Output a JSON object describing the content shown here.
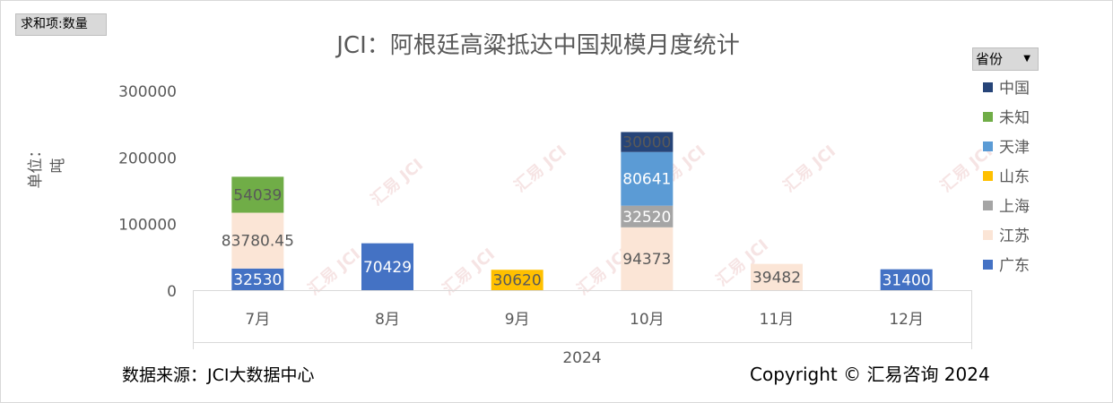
{
  "pivot_button": {
    "label": "求和项:数量"
  },
  "legend_filter": {
    "label": "省份",
    "arrow": "▼"
  },
  "y_axis_title": "单位：吨",
  "source_note": "数据来源：JCI大数据中心",
  "copyright_note": "Copyright © 汇易咨询 2024",
  "watermark": {
    "label": "汇易 JCI",
    "color": "#e8b4b4"
  },
  "chart_data": {
    "type": "bar",
    "stacked": true,
    "title": "JCI：阿根廷高粱抵达中国规模月度统计",
    "categories": [
      "7月",
      "8月",
      "9月",
      "10月",
      "11月",
      "12月"
    ],
    "group_label": "2024",
    "ylim": [
      0,
      300000
    ],
    "yticks": [
      "0",
      "100000",
      "200000",
      "300000"
    ],
    "grid": false,
    "legend_position": "right",
    "series": [
      {
        "name": "广东",
        "color": "#4472c4",
        "label_color": "#ffffff",
        "values": [
          32530,
          70429,
          null,
          null,
          null,
          31400
        ],
        "labels": [
          "32530",
          "70429",
          "",
          "",
          "",
          "31400"
        ]
      },
      {
        "name": "江苏",
        "color": "#fbe5d6",
        "label_color": "#595959",
        "values": [
          83780.45,
          null,
          null,
          94373,
          39482,
          null
        ],
        "labels": [
          "83780.45",
          "",
          "",
          "94373",
          "39482",
          ""
        ]
      },
      {
        "name": "上海",
        "color": "#a5a5a5",
        "label_color": "#ffffff",
        "values": [
          null,
          null,
          null,
          32520,
          null,
          null
        ],
        "labels": [
          "",
          "",
          "",
          "32520",
          "",
          ""
        ]
      },
      {
        "name": "山东",
        "color": "#ffc000",
        "label_color": "#595959",
        "values": [
          null,
          null,
          30620,
          null,
          null,
          null
        ],
        "labels": [
          "",
          "",
          "30620",
          "",
          "",
          ""
        ]
      },
      {
        "name": "天津",
        "color": "#5b9bd5",
        "label_color": "#ffffff",
        "values": [
          null,
          null,
          null,
          80641,
          null,
          null
        ],
        "labels": [
          "",
          "",
          "",
          "80641",
          "",
          ""
        ]
      },
      {
        "name": "未知",
        "color": "#70ad47",
        "label_color": "#595959",
        "values": [
          54039,
          null,
          null,
          null,
          null,
          null
        ],
        "labels": [
          "54039",
          "",
          "",
          "",
          "",
          ""
        ]
      },
      {
        "name": "中国",
        "color": "#264478",
        "label_color": "#595959",
        "values": [
          null,
          null,
          null,
          30000,
          null,
          null
        ],
        "labels": [
          "",
          "",
          "",
          "30000",
          "",
          ""
        ]
      }
    ]
  }
}
